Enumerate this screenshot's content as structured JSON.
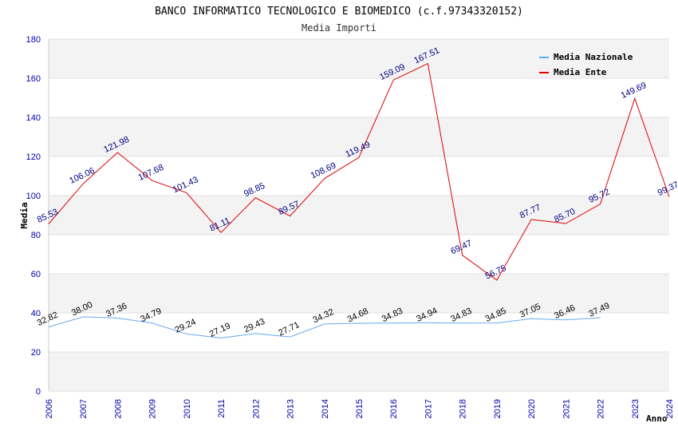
{
  "chart_data": {
    "type": "line",
    "title": "BANCO INFORMATICO TECNOLOGICO E BIOMEDICO (c.f.97343320152)",
    "subtitle": "Media Importi",
    "xlabel": "Anno",
    "ylabel": "Media",
    "ylim": [
      0,
      180
    ],
    "yticks": [
      0,
      20,
      40,
      60,
      80,
      100,
      120,
      140,
      160,
      180
    ],
    "grid": true,
    "legend_position": "top-right",
    "x": [
      2006,
      2007,
      2008,
      2009,
      2010,
      2011,
      2012,
      2013,
      2014,
      2015,
      2016,
      2017,
      2018,
      2019,
      2020,
      2021,
      2022,
      2023,
      2024
    ],
    "series": [
      {
        "name": "Media Nazionale",
        "color": "#66aaee",
        "label_color": "#000000",
        "values": [
          32.82,
          38.0,
          37.36,
          34.79,
          29.24,
          27.19,
          29.43,
          27.71,
          34.32,
          34.68,
          34.83,
          34.94,
          34.83,
          34.85,
          37.05,
          36.46,
          37.49,
          null,
          null
        ],
        "labels": [
          "32.82",
          "38.00",
          "37.36",
          "34.79",
          "29.24",
          "27.19",
          "29.43",
          "27.71",
          "34.32",
          "34.68",
          "34.83",
          "34.94",
          "34.83",
          "34.85",
          "37.05",
          "36.46",
          "37.49",
          "",
          ""
        ]
      },
      {
        "name": "Media Ente",
        "color": "#dd0000",
        "label_color": "#000080",
        "values": [
          85.53,
          106.06,
          121.98,
          107.68,
          101.43,
          81.11,
          98.85,
          89.57,
          108.69,
          119.49,
          159.09,
          167.51,
          69.47,
          56.75,
          87.77,
          85.7,
          95.72,
          149.69,
          99.37
        ],
        "labels": [
          "85.53",
          "106.06",
          "121.98",
          "107.68",
          "101.43",
          "81.11",
          "98.85",
          "89.57",
          "108.69",
          "119.49",
          "159.09",
          "167.51",
          "69.47",
          "56.75",
          "87.77",
          "85.70",
          "95.72",
          "149.69",
          "99.37"
        ]
      }
    ]
  }
}
